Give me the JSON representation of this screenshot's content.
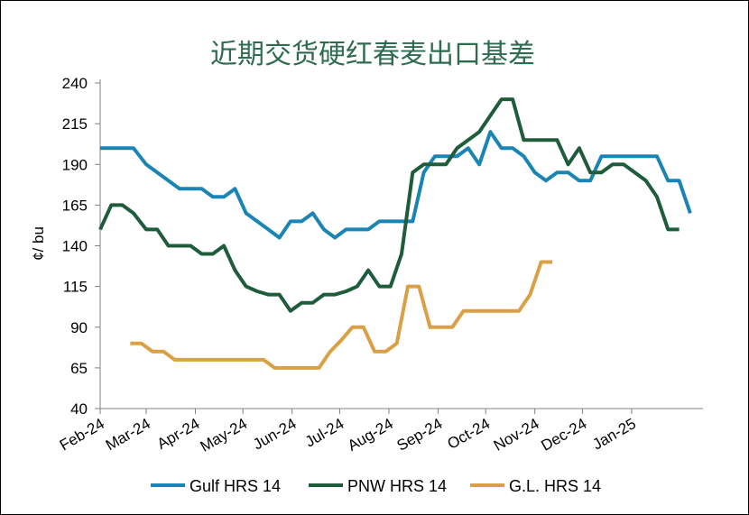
{
  "chart_data": {
    "type": "line",
    "title": "近期交货硬红春麦出口基差",
    "ylabel": "¢/ bu",
    "xlabel": "",
    "ylim": [
      40,
      240
    ],
    "yticks": [
      40,
      65,
      90,
      115,
      140,
      165,
      190,
      215,
      240
    ],
    "xlim": [
      "2024-02-01",
      "2025-02-15"
    ],
    "xticks": [
      {
        "date": "2024-02-01",
        "label": "Feb-24"
      },
      {
        "date": "2024-03-01",
        "label": "Mar-24"
      },
      {
        "date": "2024-04-01",
        "label": "Apr-24"
      },
      {
        "date": "2024-05-01",
        "label": "May-24"
      },
      {
        "date": "2024-06-01",
        "label": "Jun-24"
      },
      {
        "date": "2024-07-01",
        "label": "Jul-24"
      },
      {
        "date": "2024-08-01",
        "label": "Aug-24"
      },
      {
        "date": "2024-09-01",
        "label": "Sep-24"
      },
      {
        "date": "2024-10-01",
        "label": "Oct-24"
      },
      {
        "date": "2024-11-01",
        "label": "Nov-24"
      },
      {
        "date": "2024-12-01",
        "label": "Dec-24"
      },
      {
        "date": "2025-01-01",
        "label": "Jan-25"
      }
    ],
    "grid": false,
    "legend_position": "bottom",
    "series": [
      {
        "name": "Gulf HRS 14",
        "color": "#1a85b5",
        "points": [
          [
            "2024-02-01",
            200
          ],
          [
            "2024-02-08",
            200
          ],
          [
            "2024-02-15",
            200
          ],
          [
            "2024-02-22",
            200
          ],
          [
            "2024-03-01",
            190
          ],
          [
            "2024-03-08",
            185
          ],
          [
            "2024-03-15",
            180
          ],
          [
            "2024-03-22",
            175
          ],
          [
            "2024-03-29",
            175
          ],
          [
            "2024-04-05",
            175
          ],
          [
            "2024-04-12",
            170
          ],
          [
            "2024-04-19",
            170
          ],
          [
            "2024-04-26",
            175
          ],
          [
            "2024-05-03",
            160
          ],
          [
            "2024-05-10",
            155
          ],
          [
            "2024-05-17",
            150
          ],
          [
            "2024-05-24",
            145
          ],
          [
            "2024-05-31",
            155
          ],
          [
            "2024-06-07",
            155
          ],
          [
            "2024-06-14",
            160
          ],
          [
            "2024-06-21",
            150
          ],
          [
            "2024-06-28",
            145
          ],
          [
            "2024-07-05",
            150
          ],
          [
            "2024-07-12",
            150
          ],
          [
            "2024-07-19",
            150
          ],
          [
            "2024-07-26",
            155
          ],
          [
            "2024-08-02",
            155
          ],
          [
            "2024-08-09",
            155
          ],
          [
            "2024-08-16",
            155
          ],
          [
            "2024-08-23",
            185
          ],
          [
            "2024-08-30",
            195
          ],
          [
            "2024-09-06",
            195
          ],
          [
            "2024-09-13",
            195
          ],
          [
            "2024-09-20",
            200
          ],
          [
            "2024-09-27",
            190
          ],
          [
            "2024-10-04",
            210
          ],
          [
            "2024-10-11",
            200
          ],
          [
            "2024-10-18",
            200
          ],
          [
            "2024-10-25",
            195
          ],
          [
            "2024-11-01",
            185
          ],
          [
            "2024-11-08",
            180
          ],
          [
            "2024-11-15",
            185
          ],
          [
            "2024-11-22",
            185
          ],
          [
            "2024-11-29",
            180
          ],
          [
            "2024-12-06",
            180
          ],
          [
            "2024-12-13",
            195
          ],
          [
            "2024-12-20",
            195
          ],
          [
            "2024-12-27",
            195
          ],
          [
            "2025-01-03",
            195
          ],
          [
            "2025-01-10",
            195
          ],
          [
            "2025-01-17",
            195
          ],
          [
            "2025-01-24",
            180
          ],
          [
            "2025-01-31",
            180
          ],
          [
            "2025-02-07",
            160
          ]
        ]
      },
      {
        "name": "PNW HRS 14",
        "color": "#1f5c3c",
        "points": [
          [
            "2024-02-01",
            150
          ],
          [
            "2024-02-08",
            165
          ],
          [
            "2024-02-15",
            165
          ],
          [
            "2024-02-22",
            160
          ],
          [
            "2024-03-01",
            150
          ],
          [
            "2024-03-08",
            150
          ],
          [
            "2024-03-15",
            140
          ],
          [
            "2024-03-22",
            140
          ],
          [
            "2024-03-29",
            140
          ],
          [
            "2024-04-05",
            135
          ],
          [
            "2024-04-12",
            135
          ],
          [
            "2024-04-19",
            140
          ],
          [
            "2024-04-26",
            125
          ],
          [
            "2024-05-03",
            115
          ],
          [
            "2024-05-10",
            112
          ],
          [
            "2024-05-17",
            110
          ],
          [
            "2024-05-24",
            110
          ],
          [
            "2024-05-31",
            100
          ],
          [
            "2024-06-07",
            105
          ],
          [
            "2024-06-14",
            105
          ],
          [
            "2024-06-21",
            110
          ],
          [
            "2024-06-28",
            110
          ],
          [
            "2024-07-05",
            112
          ],
          [
            "2024-07-12",
            115
          ],
          [
            "2024-07-19",
            125
          ],
          [
            "2024-07-26",
            115
          ],
          [
            "2024-08-02",
            115
          ],
          [
            "2024-08-09",
            135
          ],
          [
            "2024-08-16",
            185
          ],
          [
            "2024-08-23",
            190
          ],
          [
            "2024-08-30",
            190
          ],
          [
            "2024-09-06",
            190
          ],
          [
            "2024-09-13",
            200
          ],
          [
            "2024-09-20",
            205
          ],
          [
            "2024-09-27",
            210
          ],
          [
            "2024-10-04",
            220
          ],
          [
            "2024-10-11",
            230
          ],
          [
            "2024-10-18",
            230
          ],
          [
            "2024-10-25",
            205
          ],
          [
            "2024-11-01",
            205
          ],
          [
            "2024-11-08",
            205
          ],
          [
            "2024-11-15",
            205
          ],
          [
            "2024-11-22",
            190
          ],
          [
            "2024-11-29",
            200
          ],
          [
            "2024-12-06",
            185
          ],
          [
            "2024-12-13",
            185
          ],
          [
            "2024-12-20",
            190
          ],
          [
            "2024-12-27",
            190
          ],
          [
            "2025-01-03",
            185
          ],
          [
            "2025-01-10",
            180
          ],
          [
            "2025-01-17",
            170
          ],
          [
            "2025-01-24",
            150
          ],
          [
            "2025-01-31",
            150
          ]
        ]
      },
      {
        "name": "G.L. HRS 14",
        "color": "#d9a046",
        "points": [
          [
            "2024-02-20",
            80
          ],
          [
            "2024-02-27",
            80
          ],
          [
            "2024-03-05",
            75
          ],
          [
            "2024-03-12",
            75
          ],
          [
            "2024-03-19",
            70
          ],
          [
            "2024-03-26",
            70
          ],
          [
            "2024-04-02",
            70
          ],
          [
            "2024-04-09",
            70
          ],
          [
            "2024-04-16",
            70
          ],
          [
            "2024-04-23",
            70
          ],
          [
            "2024-04-30",
            70
          ],
          [
            "2024-05-07",
            70
          ],
          [
            "2024-05-14",
            70
          ],
          [
            "2024-05-21",
            65
          ],
          [
            "2024-05-28",
            65
          ],
          [
            "2024-06-04",
            65
          ],
          [
            "2024-06-11",
            65
          ],
          [
            "2024-06-18",
            65
          ],
          [
            "2024-06-25",
            75
          ],
          [
            "2024-07-02",
            82
          ],
          [
            "2024-07-09",
            90
          ],
          [
            "2024-07-16",
            90
          ],
          [
            "2024-07-23",
            75
          ],
          [
            "2024-07-30",
            75
          ],
          [
            "2024-08-06",
            80
          ],
          [
            "2024-08-13",
            115
          ],
          [
            "2024-08-20",
            115
          ],
          [
            "2024-08-27",
            90
          ],
          [
            "2024-09-03",
            90
          ],
          [
            "2024-09-10",
            90
          ],
          [
            "2024-09-17",
            100
          ],
          [
            "2024-09-24",
            100
          ],
          [
            "2024-10-01",
            100
          ],
          [
            "2024-10-08",
            100
          ],
          [
            "2024-10-15",
            100
          ],
          [
            "2024-10-22",
            100
          ],
          [
            "2024-10-29",
            110
          ],
          [
            "2024-11-05",
            130
          ],
          [
            "2024-11-12",
            130
          ]
        ]
      }
    ]
  }
}
